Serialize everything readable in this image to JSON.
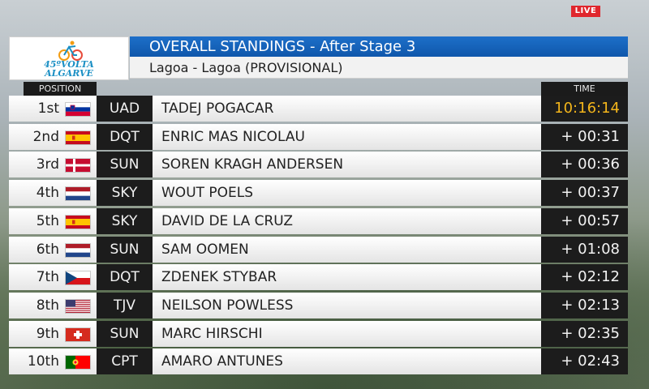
{
  "live_label": "LIVE",
  "logo": {
    "line1": "45ºVOLTA",
    "line2": "ALGARVE"
  },
  "title": "OVERALL STANDINGS - After Stage 3",
  "subtitle": "Lagoa - Lagoa (PROVISIONAL)",
  "headers": {
    "position": "POSITION",
    "time": "TIME"
  },
  "rows": [
    {
      "position": "1st",
      "flag": "slovenia",
      "team": "UAD",
      "rider": "TADEJ POGACAR",
      "time": "10:16:14"
    },
    {
      "position": "2nd",
      "flag": "spain",
      "team": "DQT",
      "rider": "ENRIC MAS NICOLAU",
      "time": "+ 00:31"
    },
    {
      "position": "3rd",
      "flag": "denmark",
      "team": "SUN",
      "rider": "SOREN KRAGH ANDERSEN",
      "time": "+ 00:36"
    },
    {
      "position": "4th",
      "flag": "netherlands",
      "team": "SKY",
      "rider": "WOUT POELS",
      "time": "+ 00:37"
    },
    {
      "position": "5th",
      "flag": "spain",
      "team": "SKY",
      "rider": "DAVID DE LA CRUZ",
      "time": "+ 00:57"
    },
    {
      "position": "6th",
      "flag": "netherlands",
      "team": "SUN",
      "rider": "SAM OOMEN",
      "time": "+ 01:08"
    },
    {
      "position": "7th",
      "flag": "czech-republic",
      "team": "DQT",
      "rider": "ZDENEK STYBAR",
      "time": "+ 02:12"
    },
    {
      "position": "8th",
      "flag": "usa",
      "team": "TJV",
      "rider": "NEILSON POWLESS",
      "time": "+ 02:13"
    },
    {
      "position": "9th",
      "flag": "switzerland",
      "team": "SUN",
      "rider": "MARC HIRSCHI",
      "time": "+ 02:35"
    },
    {
      "position": "10th",
      "flag": "portugal",
      "team": "CPT",
      "rider": "AMARO ANTUNES",
      "time": "+ 02:43"
    }
  ],
  "colors": {
    "title_bar": "#1565c0",
    "leader_time": "#f3b51b",
    "live_badge": "#e0262d",
    "logo_text": "#1a8fc4"
  }
}
